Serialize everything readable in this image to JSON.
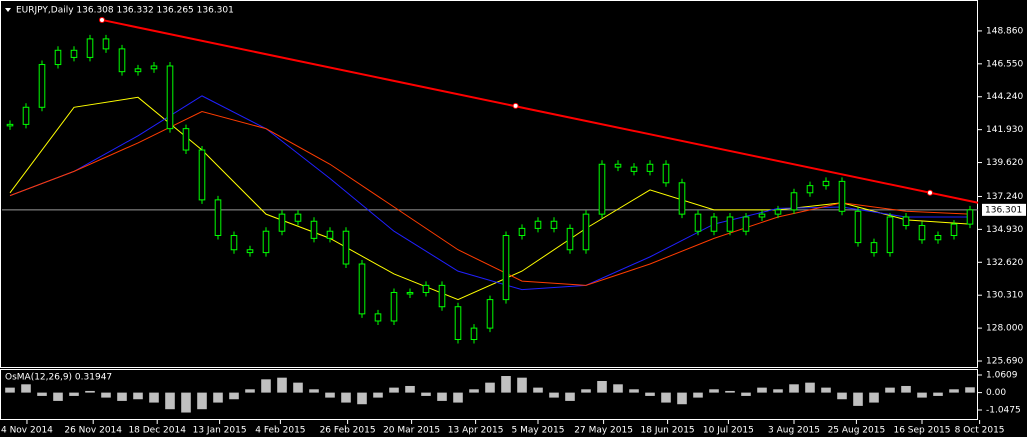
{
  "chart_data": [
    {
      "type": "candlestick",
      "title": "EURJPY,Daily 136.308 136.332 136.265 136.301",
      "color": "#00ff00",
      "values": [
        142.3,
        143.5,
        146.5,
        147.5,
        147.0,
        148.3,
        147.6,
        146.0,
        146.2,
        146.4,
        142.0,
        140.5,
        137.0,
        134.5,
        133.5,
        133.3,
        134.8,
        136.0,
        135.5,
        134.3,
        134.8,
        132.5,
        129.0,
        128.5,
        130.5,
        130.5,
        131.0,
        129.5,
        127.2,
        128.0,
        130.0,
        134.5,
        135.0,
        135.5,
        135.0,
        133.5,
        136.0,
        139.5,
        139.3,
        139.0,
        139.5,
        138.2,
        136.0,
        134.8,
        135.8,
        134.8,
        135.8,
        136.0,
        136.3,
        137.5,
        138.0,
        138.3,
        136.2,
        134.0,
        133.3,
        135.8,
        135.2,
        134.2,
        134.5,
        135.3,
        136.301
      ],
      "xlim": [
        -0.5,
        60.5
      ],
      "xticks": [
        {
          "value": 1.06,
          "label": "4 Nov 2014"
        },
        {
          "value": 5.2,
          "label": "26 Nov 2014"
        },
        {
          "value": 9.2,
          "label": "18 Dec 2014"
        },
        {
          "value": 13.1,
          "label": "13 Jan 2015"
        },
        {
          "value": 16.9,
          "label": "4 Feb 2015"
        },
        {
          "value": 21.1,
          "label": "26 Feb 2015"
        },
        {
          "value": 25.1,
          "label": "20 Mar 2015"
        },
        {
          "value": 29.1,
          "label": "13 Apr 2015"
        },
        {
          "value": 33,
          "label": "5 May 2015"
        },
        {
          "value": 37.1,
          "label": "27 May 2015"
        },
        {
          "value": 41.1,
          "label": "18 Jun 2015"
        },
        {
          "value": 44.9,
          "label": "10 Jul 2015"
        },
        {
          "value": 49,
          "label": "3 Aug 2015"
        },
        {
          "value": 52.9,
          "label": "25 Aug 2015"
        },
        {
          "value": 57,
          "label": "16 Sep 2015"
        },
        {
          "value": 60.6,
          "label": "8 Oct 2015"
        }
      ],
      "ylim": [
        125.27,
        150.89
      ],
      "yticks": [
        {
          "value": 148.86,
          "label": "148.860"
        },
        {
          "value": 146.55,
          "label": "146.550"
        },
        {
          "value": 144.24,
          "label": "144.240"
        },
        {
          "value": 141.93,
          "label": "141.930"
        },
        {
          "value": 139.62,
          "label": "139.620"
        },
        {
          "value": 137.24,
          "label": "137.240"
        },
        {
          "value": 134.93,
          "label": "134.930"
        },
        {
          "value": 132.62,
          "label": "132.620"
        },
        {
          "value": 130.31,
          "label": "130.310"
        },
        {
          "value": 128.0,
          "label": "128.000"
        },
        {
          "value": 125.69,
          "label": "125.690"
        }
      ],
      "last_price": 136.301,
      "series": [
        {
          "color": "#ffff00",
          "x": [
            0,
            4,
            8,
            12,
            16,
            20,
            24,
            28,
            32,
            36,
            40,
            44,
            48,
            52,
            56,
            60
          ],
          "values": [
            137.5,
            143.5,
            144.2,
            140.5,
            136.0,
            134.3,
            131.8,
            130.0,
            132.0,
            135.0,
            137.7,
            136.3,
            136.3,
            136.8,
            135.6,
            135.3
          ]
        },
        {
          "color": "#2020ff",
          "x": [
            0,
            4,
            8,
            12,
            16,
            20,
            24,
            28,
            32,
            36,
            40,
            44,
            48,
            52,
            56,
            60
          ],
          "values": [
            137.3,
            139.0,
            141.5,
            144.3,
            142.0,
            138.5,
            134.8,
            132.0,
            130.7,
            131.0,
            133.0,
            135.3,
            136.4,
            136.5,
            135.8,
            135.8
          ]
        },
        {
          "color": "#ff3c00",
          "x": [
            0,
            4,
            8,
            12,
            16,
            20,
            24,
            28,
            32,
            36,
            40,
            44,
            48,
            52,
            56,
            60
          ],
          "values": [
            137.3,
            139.0,
            141.0,
            143.2,
            142.0,
            139.5,
            136.5,
            133.5,
            131.3,
            131.0,
            132.5,
            134.3,
            135.8,
            136.8,
            136.2,
            136.0
          ]
        }
      ],
      "trendline": {
        "color": "#ff0000",
        "x": [
          5.75,
          60.5
        ],
        "values": [
          149.63,
          136.8
        ]
      },
      "anchors": {
        "x": [
          5.75,
          31.6,
          57.5
        ],
        "values": [
          149.63,
          143.6,
          137.5
        ]
      }
    },
    {
      "type": "bar",
      "title": "OsMA(12,26,9) 0.31947",
      "color": "#c0c0c0",
      "xlim": [
        -0.5,
        60.5
      ],
      "ylim": [
        -1.65,
        1.362
      ],
      "yticks": [
        1.0609,
        {
          "value": 0,
          "label": "0.00"
        },
        -1.0475
      ],
      "values": [
        0.3,
        0.5,
        -0.2,
        -0.5,
        -0.2,
        0.1,
        -0.3,
        -0.5,
        -0.4,
        -0.6,
        -1.0,
        -1.2,
        -1.0,
        -0.6,
        -0.4,
        0.2,
        0.8,
        0.9,
        0.6,
        0.2,
        -0.3,
        -0.6,
        -0.7,
        -0.3,
        0.3,
        0.4,
        -0.2,
        -0.5,
        -0.6,
        0.2,
        0.6,
        1.0,
        0.9,
        0.3,
        -0.3,
        -0.5,
        0.2,
        0.7,
        0.5,
        0.2,
        -0.2,
        -0.6,
        -0.7,
        -0.3,
        0.2,
        0.1,
        -0.2,
        0.3,
        0.2,
        0.5,
        0.6,
        0.3,
        -0.4,
        -0.8,
        -0.6,
        0.3,
        0.4,
        -0.3,
        -0.2,
        0.2,
        0.32
      ]
    }
  ]
}
